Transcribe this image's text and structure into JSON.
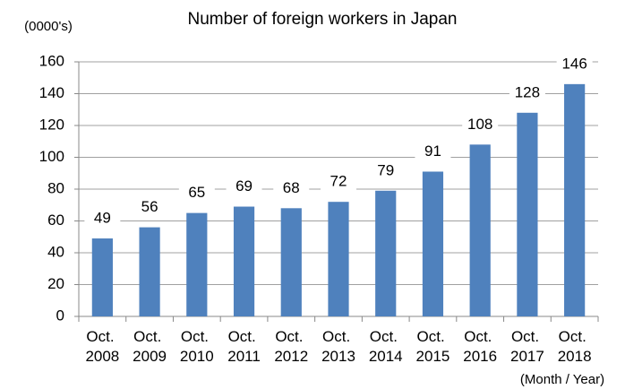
{
  "chart_data": {
    "type": "bar",
    "title": "Number of foreign workers in Japan",
    "y_label": "(0000's)",
    "x_label": "(Month / Year)",
    "categories": [
      "Oct. 2008",
      "Oct. 2009",
      "Oct. 2010",
      "Oct. 2011",
      "Oct. 2012",
      "Oct. 2013",
      "Oct. 2014",
      "Oct. 2015",
      "Oct. 2016",
      "Oct. 2017",
      "Oct. 2018"
    ],
    "values": [
      49,
      56,
      65,
      69,
      68,
      72,
      79,
      91,
      108,
      128,
      146
    ],
    "color": "#4f81bd",
    "ylim": [
      0,
      160
    ],
    "yticks": [
      0,
      20,
      40,
      60,
      80,
      100,
      120,
      140,
      160
    ],
    "grid": true
  }
}
